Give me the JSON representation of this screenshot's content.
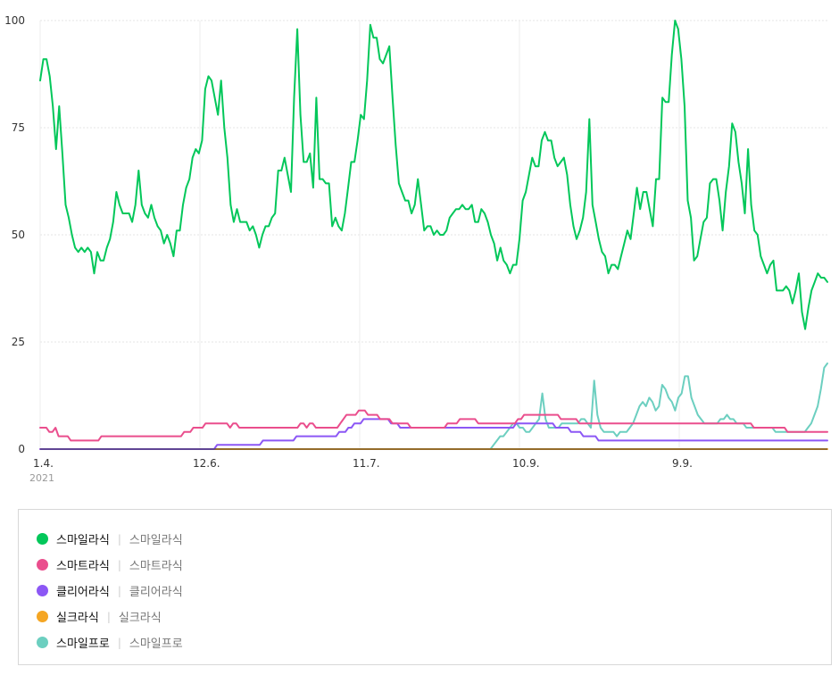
{
  "chart_data": {
    "type": "line",
    "ylim": [
      0,
      100
    ],
    "y_ticks": [
      0,
      25,
      50,
      75,
      100
    ],
    "x_ticks": [
      "1.4.",
      "12.6.",
      "11.7.",
      "10.9.",
      "9.9."
    ],
    "x_year_label": "2021",
    "grid": "vertical and horizontal dotted",
    "series": [
      {
        "name": "스마일라식",
        "term": "스마일라식",
        "color": "#03c75a",
        "values": [
          86,
          91,
          91,
          87,
          80,
          70,
          80,
          69,
          57,
          54,
          50,
          47,
          46,
          47,
          46,
          47,
          46,
          41,
          46,
          44,
          44,
          47,
          49,
          53,
          60,
          57,
          55,
          55,
          55,
          53,
          57,
          65,
          57,
          55,
          54,
          57,
          54,
          52,
          51,
          48,
          50,
          48,
          45,
          51,
          51,
          57,
          61,
          63,
          68,
          70,
          69,
          72,
          84,
          87,
          86,
          82,
          78,
          86,
          75,
          68,
          57,
          53,
          56,
          53,
          53,
          53,
          51,
          52,
          50,
          47,
          50,
          52,
          52,
          54,
          55,
          65,
          65,
          68,
          64,
          60,
          82,
          98,
          78,
          67,
          67,
          69,
          61,
          82,
          63,
          63,
          62,
          62,
          52,
          54,
          52,
          51,
          55,
          61,
          67,
          67,
          72,
          78,
          77,
          86,
          99,
          96,
          96,
          91,
          90,
          92,
          94,
          82,
          71,
          62,
          60,
          58,
          58,
          55,
          57,
          63,
          57,
          51,
          52,
          52,
          50,
          51,
          50,
          50,
          51,
          54,
          55,
          56,
          56,
          57,
          56,
          56,
          57,
          53,
          53,
          56,
          55,
          53,
          50,
          48,
          44,
          47,
          44,
          43,
          41,
          43,
          43,
          49,
          58,
          60,
          64,
          68,
          66,
          66,
          72,
          74,
          72,
          72,
          68,
          66,
          67,
          68,
          64,
          57,
          52,
          49,
          51,
          54,
          60,
          77,
          57,
          53,
          49,
          46,
          45,
          41,
          43,
          43,
          42,
          45,
          48,
          51,
          49,
          55,
          61,
          56,
          60,
          60,
          56,
          52,
          63,
          63,
          82,
          81,
          81,
          92,
          100,
          98,
          91,
          80,
          58,
          54,
          44,
          45,
          49,
          53,
          54,
          62,
          63,
          63,
          58,
          51,
          60,
          66,
          76,
          74,
          67,
          62,
          55,
          70,
          57,
          51,
          50,
          45,
          43,
          41,
          43,
          44,
          37,
          37,
          37,
          38,
          37,
          34,
          37,
          41,
          32,
          28,
          33,
          37,
          39,
          41,
          40,
          40,
          39
        ]
      },
      {
        "name": "스마트라식",
        "term": "스마트라식",
        "color": "#ea4e8d",
        "values": [
          5,
          5,
          5,
          4,
          4,
          5,
          3,
          3,
          3,
          3,
          2,
          2,
          2,
          2,
          2,
          2,
          2,
          2,
          2,
          2,
          3,
          3,
          3,
          3,
          3,
          3,
          3,
          3,
          3,
          3,
          3,
          3,
          3,
          3,
          3,
          3,
          3,
          3,
          3,
          3,
          3,
          3,
          3,
          3,
          3,
          3,
          3,
          4,
          4,
          4,
          5,
          5,
          5,
          5,
          6,
          6,
          6,
          6,
          6,
          6,
          6,
          6,
          5,
          6,
          6,
          5,
          5,
          5,
          5,
          5,
          5,
          5,
          5,
          5,
          5,
          5,
          5,
          5,
          5,
          5,
          5,
          5,
          5,
          5,
          5,
          6,
          6,
          5,
          6,
          6,
          5,
          5,
          5,
          5,
          5,
          5,
          5,
          5,
          6,
          7,
          8,
          8,
          8,
          8,
          9,
          9,
          9,
          8,
          8,
          8,
          8,
          7,
          7,
          7,
          7,
          6,
          6,
          6,
          6,
          6,
          6,
          5,
          5,
          5,
          5,
          5,
          5,
          5,
          5,
          5,
          5,
          5,
          5,
          6,
          6,
          6,
          6,
          7,
          7,
          7,
          7,
          7,
          7,
          6,
          6,
          6,
          6,
          6,
          6,
          6,
          6,
          6,
          6,
          6,
          6,
          6,
          7,
          7,
          8,
          8,
          8,
          8,
          8,
          8,
          8,
          8,
          8,
          8,
          8,
          8,
          7,
          7,
          7,
          7,
          7,
          7,
          6,
          6,
          6,
          6,
          6,
          6,
          6,
          6,
          6,
          6,
          6,
          6,
          6,
          6,
          6,
          6,
          6,
          6,
          6,
          6,
          6,
          6,
          6,
          6,
          6,
          6,
          6,
          6,
          6,
          6,
          6,
          6,
          6,
          6,
          6,
          6,
          6,
          6,
          6,
          6,
          6,
          6,
          6,
          6,
          6,
          6,
          6,
          6,
          6,
          6,
          6,
          6,
          6,
          6,
          6,
          6,
          6,
          5,
          5,
          5,
          5,
          5,
          5,
          5,
          5,
          5,
          5,
          5,
          4,
          4,
          4,
          4,
          4,
          4,
          4,
          4,
          4,
          4,
          4,
          4,
          4,
          4
        ]
      },
      {
        "name": "클리어라식",
        "term": "클리어라식",
        "color": "#8c57f5",
        "values": [
          0,
          0,
          0,
          0,
          0,
          0,
          0,
          0,
          0,
          0,
          0,
          0,
          0,
          0,
          0,
          0,
          0,
          0,
          0,
          0,
          0,
          0,
          0,
          0,
          0,
          0,
          0,
          0,
          0,
          0,
          0,
          0,
          0,
          0,
          0,
          0,
          0,
          0,
          0,
          0,
          0,
          0,
          0,
          0,
          0,
          0,
          0,
          0,
          0,
          0,
          0,
          0,
          0,
          0,
          0,
          0,
          0,
          0,
          1,
          1,
          1,
          1,
          1,
          1,
          1,
          1,
          1,
          1,
          1,
          1,
          1,
          1,
          1,
          2,
          2,
          2,
          2,
          2,
          2,
          2,
          2,
          2,
          2,
          2,
          3,
          3,
          3,
          3,
          3,
          3,
          3,
          3,
          3,
          3,
          3,
          3,
          3,
          3,
          4,
          4,
          4,
          5,
          5,
          6,
          6,
          6,
          7,
          7,
          7,
          7,
          7,
          7,
          7,
          7,
          7,
          6,
          6,
          6,
          5,
          5,
          5,
          5,
          5,
          5,
          5,
          5,
          5,
          5,
          5,
          5,
          5,
          5,
          5,
          5,
          5,
          5,
          5,
          5,
          5,
          5,
          5,
          5,
          5,
          5,
          5,
          5,
          5,
          5,
          5,
          5,
          5,
          5,
          5,
          5,
          5,
          5,
          6,
          6,
          6,
          6,
          6,
          6,
          6,
          6,
          6,
          6,
          6,
          6,
          6,
          5,
          5,
          5,
          5,
          5,
          4,
          4,
          4,
          4,
          3,
          3,
          3,
          3,
          3,
          2,
          2,
          2,
          2,
          2,
          2,
          2,
          2,
          2,
          2,
          2,
          2,
          2,
          2,
          2,
          2,
          2,
          2,
          2,
          2,
          2,
          2,
          2,
          2,
          2,
          2,
          2,
          2,
          2,
          2,
          2,
          2,
          2,
          2,
          2,
          2,
          2,
          2,
          2,
          2,
          2,
          2,
          2,
          2,
          2,
          2,
          2,
          2,
          2,
          2,
          2,
          2,
          2,
          2,
          2,
          2,
          2,
          2,
          2,
          2,
          2,
          2,
          2,
          2,
          2,
          2,
          2,
          2,
          2,
          2,
          2,
          2,
          2,
          2,
          2,
          2
        ]
      },
      {
        "name": "실크라식",
        "term": "실크라식",
        "color": "#f5a623",
        "values": [
          0,
          0,
          0,
          0,
          0,
          0,
          0,
          0,
          0,
          0,
          0,
          0,
          0,
          0,
          0,
          0,
          0,
          0,
          0,
          0,
          0,
          0,
          0,
          0,
          0,
          0,
          0,
          0,
          0,
          0,
          0,
          0,
          0,
          0,
          0,
          0,
          0,
          0,
          0,
          0,
          0,
          0,
          0,
          0,
          0,
          0,
          0,
          0,
          0,
          0,
          0,
          0,
          0,
          0,
          0,
          0,
          0,
          0,
          0,
          0,
          0,
          0,
          0,
          0,
          0,
          0,
          0,
          0,
          0,
          0,
          0,
          0,
          0,
          0,
          0,
          0,
          0,
          0,
          0,
          0,
          0,
          0,
          0,
          0,
          0,
          0,
          0,
          0,
          0,
          0,
          0,
          0,
          0,
          0,
          0,
          0,
          0,
          0,
          0,
          0,
          0,
          0,
          0,
          0,
          0,
          0,
          0,
          0,
          0,
          0,
          0,
          0,
          0,
          0,
          0,
          0,
          0,
          0,
          0,
          0,
          0,
          0,
          0,
          0,
          0,
          0,
          0,
          0,
          0,
          0,
          0,
          0,
          0,
          0,
          0,
          0,
          0,
          0,
          0,
          0,
          0,
          0,
          0,
          0,
          0,
          0,
          0,
          0,
          0,
          0,
          0,
          0,
          0,
          0,
          0,
          0,
          0,
          0,
          0,
          0,
          0,
          0,
          0,
          0,
          0,
          0,
          0,
          0,
          0,
          0,
          0,
          0,
          0,
          0,
          0,
          0,
          0,
          0,
          0,
          0,
          0,
          0,
          0,
          0,
          0,
          0,
          0,
          0,
          0,
          0,
          0,
          0,
          0,
          0,
          0,
          0,
          0,
          0,
          0,
          0,
          0,
          0,
          0,
          0,
          0,
          0,
          0,
          0,
          0,
          0,
          0,
          0,
          0,
          0,
          0,
          0,
          0,
          0,
          0,
          0,
          0,
          0,
          0,
          0,
          0,
          0,
          0,
          0,
          0,
          0,
          0,
          0,
          0,
          0,
          0,
          0,
          0,
          0,
          0,
          0,
          0,
          0,
          0,
          0,
          0,
          0,
          0,
          0,
          0,
          0,
          0,
          0,
          0,
          0,
          0
        ]
      },
      {
        "name": "스마일프로",
        "term": "스마일프로",
        "color": "#6ccfc0",
        "values": [
          0,
          0,
          0,
          0,
          0,
          0,
          0,
          0,
          0,
          0,
          0,
          0,
          0,
          0,
          0,
          0,
          0,
          0,
          0,
          0,
          0,
          0,
          0,
          0,
          0,
          0,
          0,
          0,
          0,
          0,
          0,
          0,
          0,
          0,
          0,
          0,
          0,
          0,
          0,
          0,
          0,
          0,
          0,
          0,
          0,
          0,
          0,
          0,
          0,
          0,
          0,
          0,
          0,
          0,
          0,
          0,
          0,
          0,
          0,
          0,
          0,
          0,
          0,
          0,
          0,
          0,
          0,
          0,
          0,
          0,
          0,
          0,
          0,
          0,
          0,
          0,
          0,
          0,
          0,
          0,
          0,
          0,
          0,
          0,
          0,
          0,
          0,
          0,
          0,
          0,
          0,
          0,
          0,
          0,
          0,
          0,
          0,
          0,
          0,
          0,
          0,
          0,
          0,
          0,
          0,
          0,
          0,
          0,
          0,
          0,
          0,
          0,
          0,
          0,
          0,
          0,
          0,
          0,
          0,
          0,
          0,
          0,
          0,
          0,
          0,
          0,
          0,
          0,
          0,
          0,
          0,
          0,
          0,
          0,
          0,
          0,
          0,
          0,
          0,
          0,
          1,
          2,
          3,
          3,
          4,
          5,
          6,
          6,
          5,
          5,
          4,
          4,
          5,
          6,
          7,
          13,
          7,
          5,
          5,
          5,
          5,
          6,
          6,
          6,
          6,
          6,
          6,
          7,
          7,
          6,
          5,
          16,
          8,
          5,
          4,
          4,
          4,
          4,
          3,
          4,
          4,
          4,
          5,
          6,
          8,
          10,
          11,
          10,
          12,
          11,
          9,
          10,
          15,
          14,
          12,
          11,
          9,
          12,
          13,
          17,
          17,
          12,
          10,
          8,
          7,
          6,
          6,
          6,
          6,
          6,
          7,
          7,
          8,
          7,
          7,
          6,
          6,
          6,
          5,
          5,
          5,
          5,
          5,
          5,
          5,
          5,
          5,
          4,
          4,
          4,
          4,
          4,
          4,
          4,
          4,
          4,
          4,
          5,
          6,
          8,
          10,
          14,
          19,
          20
        ]
      }
    ]
  }
}
